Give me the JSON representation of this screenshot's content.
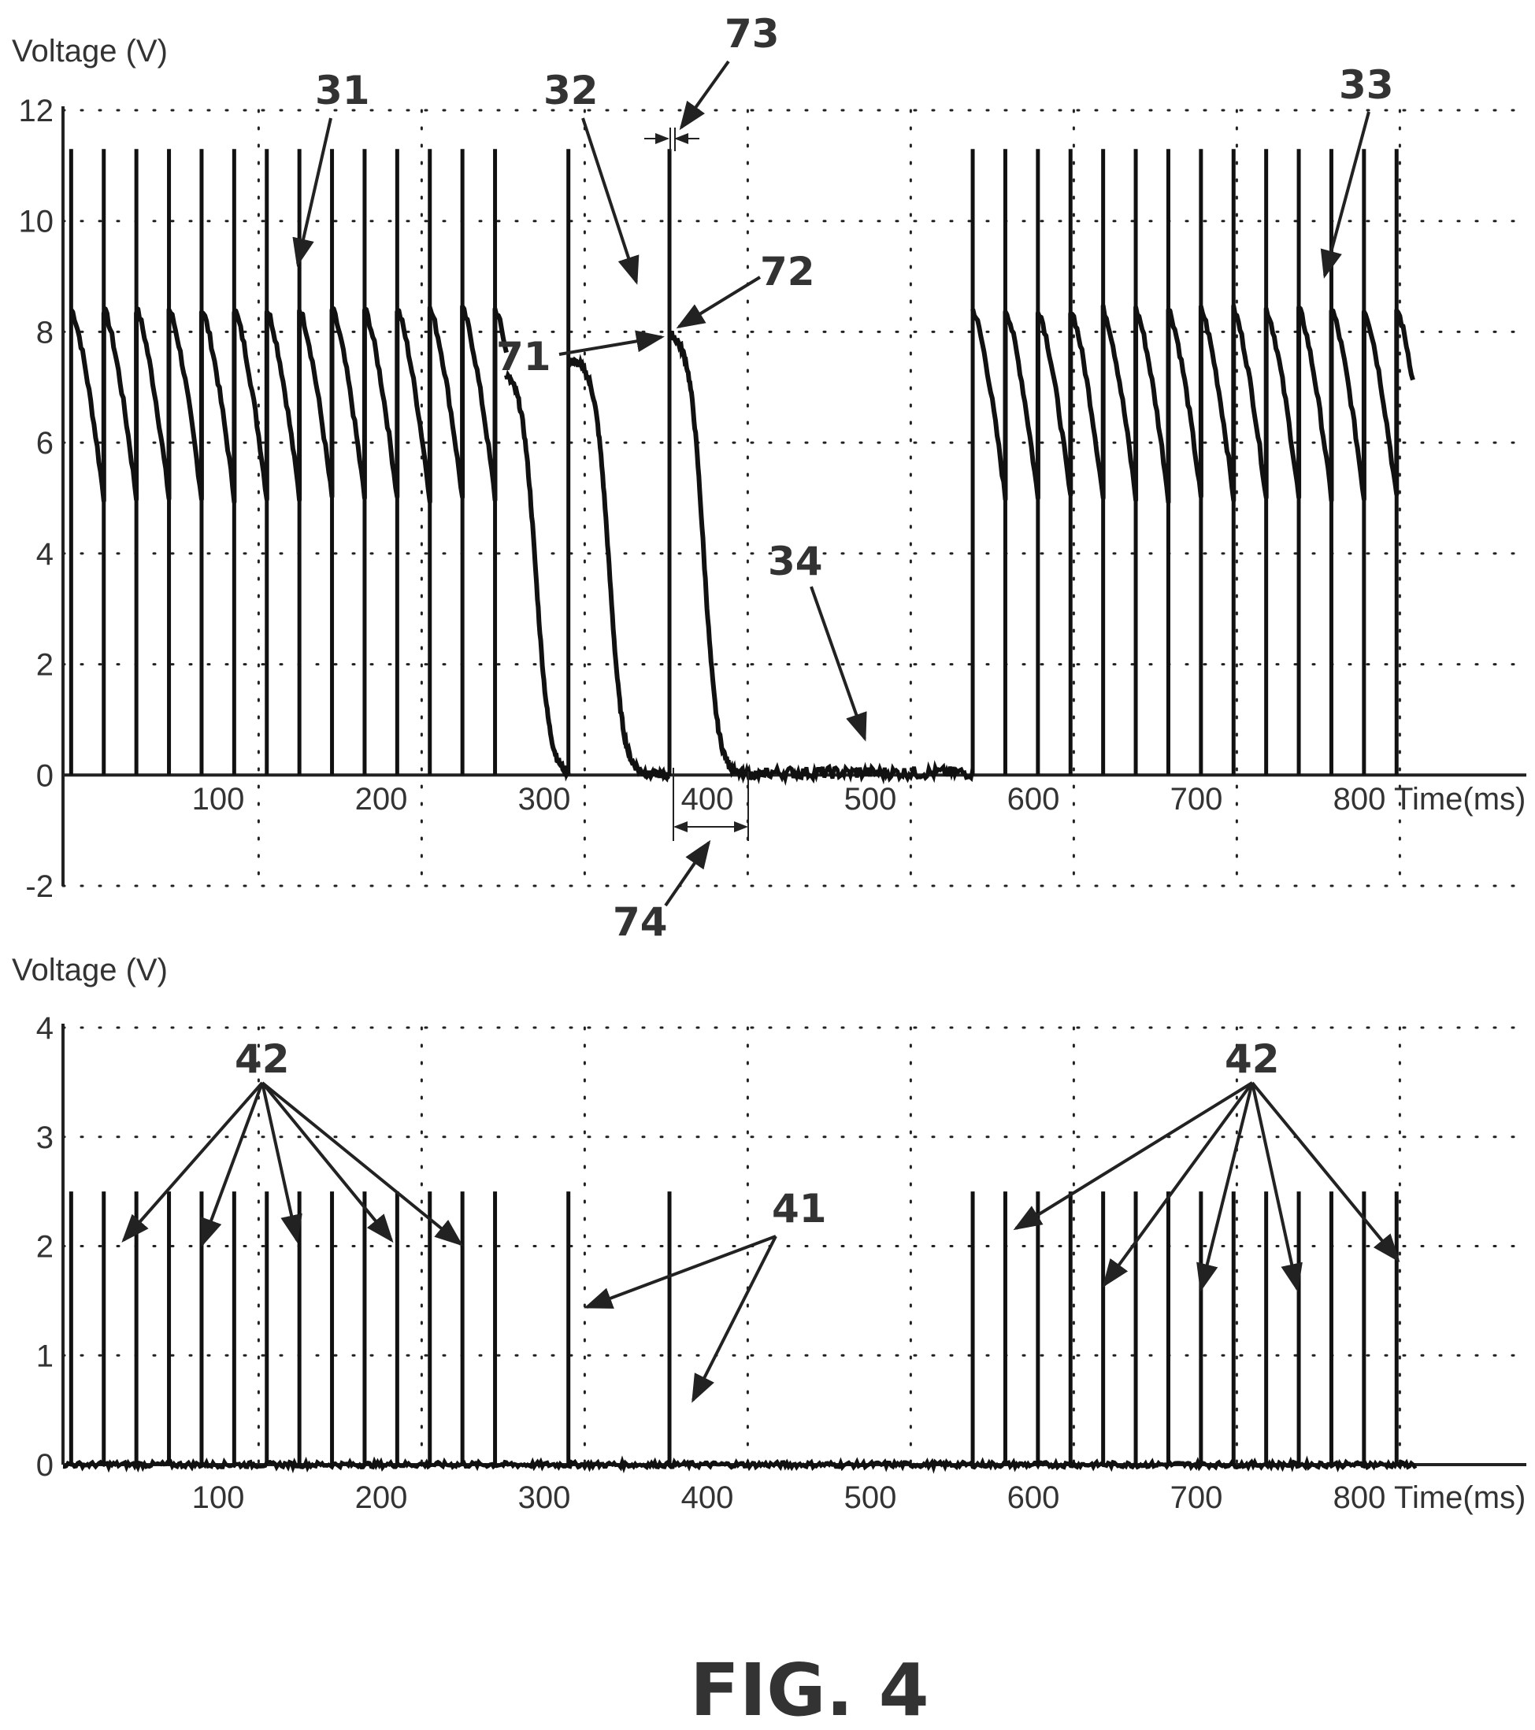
{
  "figure": {
    "caption": "FIG. 4"
  },
  "chart_data": [
    {
      "type": "line",
      "ylabel": "Voltage (V)",
      "xlabel": "Time(ms)",
      "ylim": [
        -2,
        12
      ],
      "xlim": [
        0,
        850
      ],
      "yticks": [
        {
          "value": 12,
          "label": "12"
        },
        {
          "value": 10,
          "label": "10"
        },
        {
          "value": 8,
          "label": "8"
        },
        {
          "value": 6,
          "label": "6"
        },
        {
          "value": 4,
          "label": "4"
        },
        {
          "value": 2,
          "label": "2"
        },
        {
          "value": 0,
          "label": "0"
        },
        {
          "value": -2,
          "label": "-2"
        }
      ],
      "xticks": [
        {
          "value": 100,
          "label": "100"
        },
        {
          "value": 200,
          "label": "200"
        },
        {
          "value": 300,
          "label": "300"
        },
        {
          "value": 400,
          "label": "400"
        },
        {
          "value": 500,
          "label": "500"
        },
        {
          "value": 600,
          "label": "600"
        },
        {
          "value": 700,
          "label": "700"
        },
        {
          "value": 800,
          "label": "800"
        }
      ],
      "grid": true,
      "grid_style": "dotted",
      "spikes_ms": [
        5,
        25,
        45,
        65,
        85,
        105,
        125,
        145,
        165,
        185,
        205,
        225,
        245,
        265,
        310,
        372,
        558,
        578,
        598,
        618,
        638,
        658,
        678,
        698,
        718,
        738,
        758,
        778,
        798,
        818
      ],
      "spike_peak_v": 11.3,
      "sawtooth_high_v": 8.4,
      "sawtooth_low_v": 5.0,
      "sawtooth_segments": [
        [
          5,
          272
        ],
        [
          558,
          828
        ]
      ],
      "decay_starts": [
        {
          "t": 272,
          "v": 7.3,
          "t_mid": 290
        },
        {
          "t": 310,
          "v": 7.5,
          "t_mid": 335
        },
        {
          "t": 372,
          "v": 8.0,
          "t_mid": 393
        }
      ],
      "baseline_range": [
        430,
        558
      ],
      "annotations": [
        {
          "id": "31",
          "text": "31"
        },
        {
          "id": "32",
          "text": "32"
        },
        {
          "id": "33",
          "text": "33"
        },
        {
          "id": "34",
          "text": "34"
        },
        {
          "id": "71",
          "text": "71"
        },
        {
          "id": "72",
          "text": "72"
        },
        {
          "id": "73",
          "text": "73"
        },
        {
          "id": "74",
          "text": "74"
        }
      ]
    },
    {
      "type": "line",
      "ylabel": "Voltage (V)",
      "xlabel": "Time(ms)",
      "ylim": [
        0,
        4
      ],
      "xlim": [
        0,
        850
      ],
      "yticks": [
        {
          "value": 4,
          "label": "4"
        },
        {
          "value": 3,
          "label": "3"
        },
        {
          "value": 2,
          "label": "2"
        },
        {
          "value": 1,
          "label": "1"
        },
        {
          "value": 0,
          "label": "0"
        }
      ],
      "xticks": [
        {
          "value": 100,
          "label": "100"
        },
        {
          "value": 200,
          "label": "200"
        },
        {
          "value": 300,
          "label": "300"
        },
        {
          "value": 400,
          "label": "400"
        },
        {
          "value": 500,
          "label": "500"
        },
        {
          "value": 600,
          "label": "600"
        },
        {
          "value": 700,
          "label": "700"
        },
        {
          "value": 800,
          "label": "800"
        }
      ],
      "grid": true,
      "grid_style": "dotted",
      "spikes_ms": [
        5,
        25,
        45,
        65,
        85,
        105,
        125,
        145,
        165,
        185,
        205,
        225,
        245,
        265,
        310,
        372,
        558,
        578,
        598,
        618,
        638,
        658,
        678,
        698,
        718,
        738,
        758,
        778,
        798,
        818
      ],
      "spike_peak_v": 2.5,
      "baseline_v": 0,
      "annotations": [
        {
          "id": "42a",
          "text": "42"
        },
        {
          "id": "42b",
          "text": "42"
        },
        {
          "id": "41",
          "text": "41"
        }
      ]
    }
  ]
}
